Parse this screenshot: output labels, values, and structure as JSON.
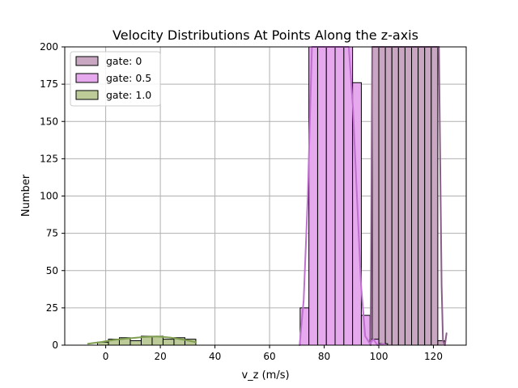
{
  "chart_data": {
    "type": "histogram",
    "title": "Velocity Distributions At Points Along the z-axis",
    "xlabel": "v_z (m/s)",
    "ylabel": "Number",
    "xlim": [
      -15,
      132
    ],
    "ylim": [
      0,
      200
    ],
    "xticks": [
      0,
      20,
      40,
      60,
      80,
      100,
      120
    ],
    "yticks": [
      0,
      25,
      50,
      75,
      100,
      125,
      150,
      175,
      200
    ],
    "grid": true,
    "legend_position": "top-left",
    "series": [
      {
        "name": "gate: 0",
        "color": "#c9a6c2",
        "kde_color": "#8a5e88",
        "bins": [
          {
            "x0": 97.6,
            "x1": 100.0,
            "count": 200
          },
          {
            "x0": 100.0,
            "x1": 102.4,
            "count": 200
          },
          {
            "x0": 102.4,
            "x1": 104.8,
            "count": 200
          },
          {
            "x0": 104.8,
            "x1": 107.2,
            "count": 200
          },
          {
            "x0": 107.2,
            "x1": 109.6,
            "count": 200
          },
          {
            "x0": 109.6,
            "x1": 112.0,
            "count": 200
          },
          {
            "x0": 112.0,
            "x1": 114.4,
            "count": 200
          },
          {
            "x0": 114.4,
            "x1": 116.8,
            "count": 200
          },
          {
            "x0": 116.8,
            "x1": 119.2,
            "count": 200
          },
          {
            "x0": 119.2,
            "x1": 121.6,
            "count": 200
          },
          {
            "x0": 121.6,
            "x1": 124.0,
            "count": 3
          }
        ],
        "kde": [
          [
            97.0,
            0
          ],
          [
            97.6,
            200
          ],
          [
            122.0,
            200
          ],
          [
            123.0,
            40
          ],
          [
            123.5,
            3
          ],
          [
            124.2,
            0
          ],
          [
            124.8,
            8
          ]
        ]
      },
      {
        "name": "gate: 0.5",
        "color": "#e6a9ee",
        "kde_color": "#c070d0",
        "bins": [
          {
            "x0": 71.2,
            "x1": 74.4,
            "count": 25
          },
          {
            "x0": 74.4,
            "x1": 77.6,
            "count": 200
          },
          {
            "x0": 77.6,
            "x1": 80.8,
            "count": 200
          },
          {
            "x0": 80.8,
            "x1": 84.0,
            "count": 200
          },
          {
            "x0": 84.0,
            "x1": 87.2,
            "count": 200
          },
          {
            "x0": 87.2,
            "x1": 90.4,
            "count": 200
          },
          {
            "x0": 90.4,
            "x1": 93.6,
            "count": 176
          },
          {
            "x0": 93.6,
            "x1": 96.8,
            "count": 20
          },
          {
            "x0": 96.8,
            "x1": 100.0,
            "count": 4
          },
          {
            "x0": 100.0,
            "x1": 103.2,
            "count": 1
          }
        ],
        "kde": [
          [
            71.0,
            0
          ],
          [
            72.5,
            30
          ],
          [
            74.0,
            100
          ],
          [
            75.5,
            200
          ],
          [
            89.0,
            200
          ],
          [
            90.5,
            160
          ],
          [
            92.0,
            100
          ],
          [
            93.5,
            40
          ],
          [
            95.0,
            6
          ],
          [
            96.8,
            1
          ],
          [
            98.0,
            4
          ],
          [
            99.5,
            0
          ],
          [
            102.0,
            1
          ]
        ]
      },
      {
        "name": "gate: 1.0",
        "color": "#bccb98",
        "kde_color": "#7f9e50",
        "bins": [
          {
            "x0": -3.0,
            "x1": 1.0,
            "count": 2
          },
          {
            "x0": 1.0,
            "x1": 5.0,
            "count": 4
          },
          {
            "x0": 5.0,
            "x1": 9.0,
            "count": 5
          },
          {
            "x0": 9.0,
            "x1": 13.0,
            "count": 3
          },
          {
            "x0": 13.0,
            "x1": 17.0,
            "count": 6
          },
          {
            "x0": 17.0,
            "x1": 21.0,
            "count": 6
          },
          {
            "x0": 21.0,
            "x1": 25.0,
            "count": 4
          },
          {
            "x0": 25.0,
            "x1": 29.0,
            "count": 5
          },
          {
            "x0": 29.0,
            "x1": 33.0,
            "count": 4
          }
        ],
        "kde": [
          [
            -6.5,
            1
          ],
          [
            -2,
            2
          ],
          [
            3,
            3.5
          ],
          [
            8,
            4.5
          ],
          [
            14,
            5.5
          ],
          [
            19,
            5.8
          ],
          [
            24,
            5
          ],
          [
            29,
            3.5
          ],
          [
            33,
            2
          ]
        ]
      }
    ]
  }
}
